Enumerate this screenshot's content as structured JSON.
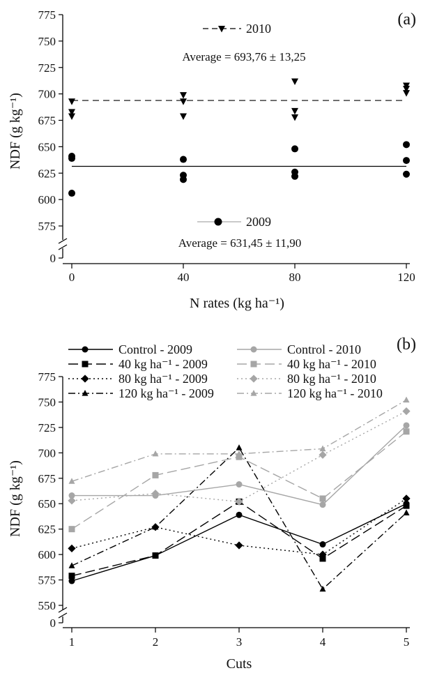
{
  "chart_data": [
    {
      "panel_label": "(a)",
      "type": "scatter",
      "xlabel": "N rates (kg ha⁻¹)",
      "ylabel": "NDF (g kg⁻¹)",
      "x_ticks": [
        "0",
        "40",
        "80",
        "120"
      ],
      "y_ticks": [
        "575",
        "600",
        "625",
        "650",
        "675",
        "700",
        "725",
        "750",
        "775"
      ],
      "y_break": true,
      "y_zero_label": "0",
      "xlim": [
        0,
        120
      ],
      "ylim": [
        575,
        775
      ],
      "grid": false,
      "series": [
        {
          "name": "2010",
          "marker": "triangle-down",
          "color": "#000000",
          "points": [
            {
              "x": 0,
              "y": 693
            },
            {
              "x": 0,
              "y": 683
            },
            {
              "x": 0,
              "y": 679
            },
            {
              "x": 40,
              "y": 699
            },
            {
              "x": 40,
              "y": 693
            },
            {
              "x": 40,
              "y": 679
            },
            {
              "x": 80,
              "y": 712
            },
            {
              "x": 80,
              "y": 684
            },
            {
              "x": 80,
              "y": 678
            },
            {
              "x": 120,
              "y": 708
            },
            {
              "x": 120,
              "y": 705
            },
            {
              "x": 120,
              "y": 701
            }
          ],
          "average_line": 693.76,
          "average_label": "Average = 693,76 ± 13,25",
          "line_style": "dashed"
        },
        {
          "name": "2009",
          "marker": "circle",
          "color": "#000000",
          "points": [
            {
              "x": 0,
              "y": 641
            },
            {
              "x": 0,
              "y": 639
            },
            {
              "x": 0,
              "y": 606
            },
            {
              "x": 40,
              "y": 638
            },
            {
              "x": 40,
              "y": 623
            },
            {
              "x": 40,
              "y": 619
            },
            {
              "x": 80,
              "y": 648
            },
            {
              "x": 80,
              "y": 626
            },
            {
              "x": 80,
              "y": 622
            },
            {
              "x": 120,
              "y": 652
            },
            {
              "x": 120,
              "y": 637
            },
            {
              "x": 120,
              "y": 624
            }
          ],
          "average_line": 631.45,
          "average_label": "Average = 631,45 ± 11,90",
          "line_style": "solid"
        }
      ]
    },
    {
      "panel_label": "(b)",
      "type": "line",
      "xlabel": "Cuts",
      "ylabel": "NDF (g kg⁻¹)",
      "x": [
        1,
        2,
        3,
        4,
        5
      ],
      "x_ticks": [
        "1",
        "2",
        "3",
        "4",
        "5"
      ],
      "y_ticks": [
        "550",
        "575",
        "600",
        "625",
        "650",
        "675",
        "700",
        "725",
        "750",
        "775"
      ],
      "y_break": true,
      "y_zero_label": "0",
      "xlim": [
        1,
        5
      ],
      "ylim": [
        550,
        775
      ],
      "grid": false,
      "legend_position": "top",
      "series": [
        {
          "name": "Control - 2009",
          "color": "#000000",
          "dash": "",
          "marker": "circle",
          "values": [
            574,
            599,
            639,
            610,
            650
          ]
        },
        {
          "name": "40 kg ha⁻¹ - 2009",
          "color": "#000000",
          "dash": "14,6",
          "marker": "square",
          "values": [
            579,
            599,
            652,
            596,
            648
          ]
        },
        {
          "name": "80 kg ha⁻¹ - 2009",
          "color": "#000000",
          "dash": "2,4",
          "marker": "diamond",
          "values": [
            606,
            627,
            609,
            600,
            655
          ]
        },
        {
          "name": "120 kg ha⁻¹ - 2009",
          "color": "#000000",
          "dash": "10,4,2,4",
          "marker": "triangle-up",
          "values": [
            589,
            627,
            705,
            566,
            641
          ]
        },
        {
          "name": "Control - 2010",
          "color": "#a6a6a6",
          "dash": "",
          "marker": "circle",
          "values": [
            658,
            658,
            669,
            649,
            727
          ]
        },
        {
          "name": "40 kg ha⁻¹ - 2010",
          "color": "#a6a6a6",
          "dash": "14,6",
          "marker": "square",
          "values": [
            625,
            678,
            696,
            655,
            721
          ]
        },
        {
          "name": "80 kg ha⁻¹ - 2010",
          "color": "#a6a6a6",
          "dash": "2,4",
          "marker": "diamond",
          "values": [
            653,
            660,
            652,
            698,
            741
          ]
        },
        {
          "name": "120 kg ha⁻¹ - 2010",
          "color": "#a6a6a6",
          "dash": "10,4,2,4",
          "marker": "triangle-up",
          "values": [
            672,
            699,
            699,
            704,
            752
          ]
        }
      ]
    }
  ]
}
